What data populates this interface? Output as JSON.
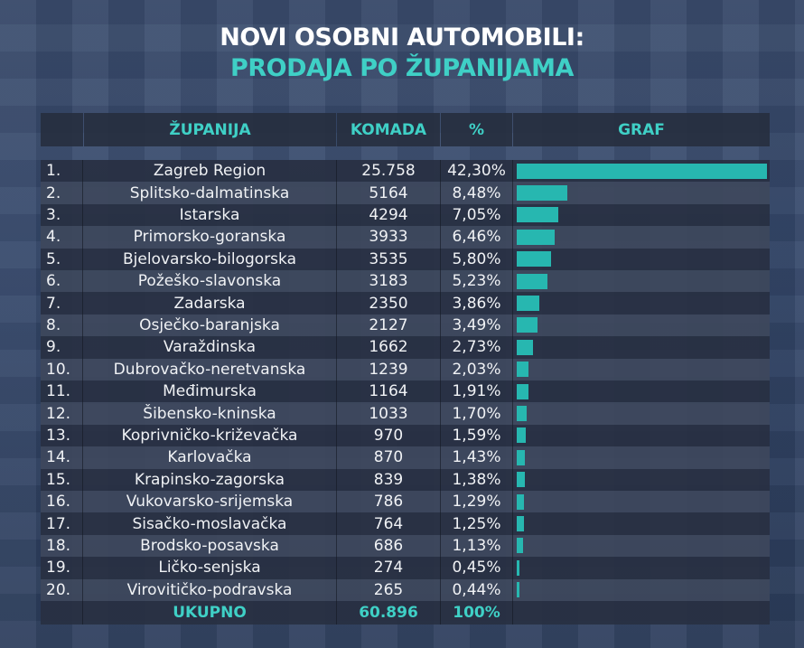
{
  "title_line1": "NOVI OSOBNI AUTOMOBILI:",
  "title_line2": "PRODAJA PO ŽUPANIJAMA",
  "colors": {
    "accent": "#3fd0c6",
    "bar": "#27b7b0"
  },
  "chart_data": {
    "type": "table",
    "columns": [
      "",
      "ŽUPANIJA",
      "KOMADA",
      "%",
      "GRAF"
    ],
    "rows": [
      {
        "rank": "1.",
        "name": "Zagreb Region",
        "count": "25.758",
        "pct": "42,30%",
        "value": 42.3
      },
      {
        "rank": "2.",
        "name": "Splitsko-dalmatinska",
        "count": "5164",
        "pct": "8,48%",
        "value": 8.48
      },
      {
        "rank": "3.",
        "name": "Istarska",
        "count": "4294",
        "pct": "7,05%",
        "value": 7.05
      },
      {
        "rank": "4.",
        "name": "Primorsko-goranska",
        "count": "3933",
        "pct": "6,46%",
        "value": 6.46
      },
      {
        "rank": "5.",
        "name": "Bjelovarsko-bilogorska",
        "count": "3535",
        "pct": "5,80%",
        "value": 5.8
      },
      {
        "rank": "6.",
        "name": "Požeško-slavonska",
        "count": "3183",
        "pct": "5,23%",
        "value": 5.23
      },
      {
        "rank": "7.",
        "name": "Zadarska",
        "count": "2350",
        "pct": "3,86%",
        "value": 3.86
      },
      {
        "rank": "8.",
        "name": "Osječko-baranjska",
        "count": "2127",
        "pct": "3,49%",
        "value": 3.49
      },
      {
        "rank": "9.",
        "name": "Varaždinska",
        "count": "1662",
        "pct": "2,73%",
        "value": 2.73
      },
      {
        "rank": "10.",
        "name": "Dubrovačko-neretvanska",
        "count": "1239",
        "pct": "2,03%",
        "value": 2.03
      },
      {
        "rank": "11.",
        "name": "Međimurska",
        "count": "1164",
        "pct": "1,91%",
        "value": 1.91
      },
      {
        "rank": "12.",
        "name": "Šibensko-kninska",
        "count": "1033",
        "pct": "1,70%",
        "value": 1.7
      },
      {
        "rank": "13.",
        "name": "Koprivničko-križevačka",
        "count": "970",
        "pct": "1,59%",
        "value": 1.59
      },
      {
        "rank": "14.",
        "name": "Karlovačka",
        "count": "870",
        "pct": "1,43%",
        "value": 1.43
      },
      {
        "rank": "15.",
        "name": "Krapinsko-zagorska",
        "count": "839",
        "pct": "1,38%",
        "value": 1.38
      },
      {
        "rank": "16.",
        "name": "Vukovarsko-srijemska",
        "count": "786",
        "pct": "1,29%",
        "value": 1.29
      },
      {
        "rank": "17.",
        "name": "Sisačko-moslavačka",
        "count": "764",
        "pct": "1,25%",
        "value": 1.25
      },
      {
        "rank": "18.",
        "name": "Brodsko-posavska",
        "count": "686",
        "pct": "1,13%",
        "value": 1.13
      },
      {
        "rank": "19.",
        "name": "Ličko-senjska",
        "count": "274",
        "pct": "0,45%",
        "value": 0.45
      },
      {
        "rank": "20.",
        "name": "Virovitičko-podravska",
        "count": "265",
        "pct": "0,44%",
        "value": 0.44
      }
    ],
    "total": {
      "label": "UKUPNO",
      "count": "60.896",
      "pct": "100%"
    }
  }
}
